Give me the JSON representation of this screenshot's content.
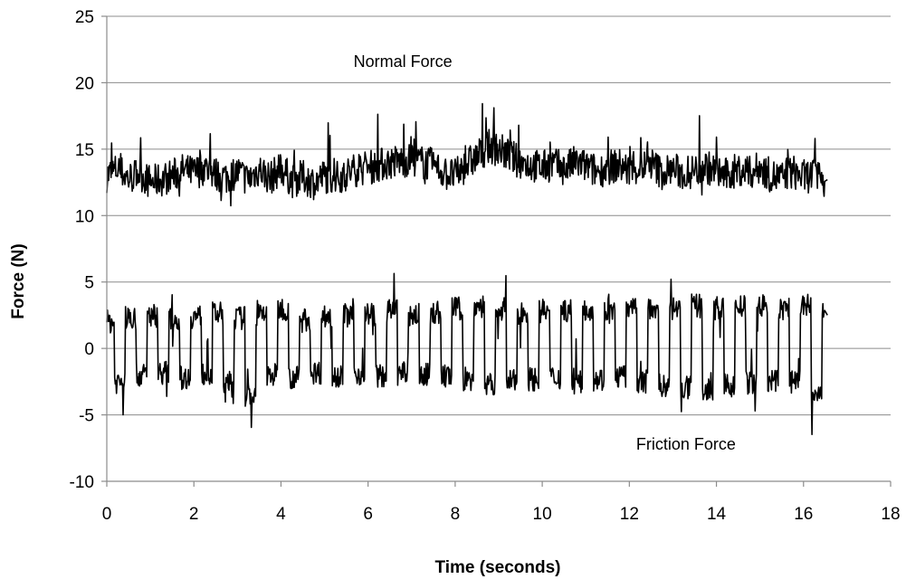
{
  "chart_data": {
    "type": "line",
    "title": "",
    "xlabel": "Time (seconds)",
    "ylabel": "Force (N)",
    "xlim": [
      0,
      18
    ],
    "ylim": [
      -10,
      25
    ],
    "x_ticks": [
      0,
      2,
      4,
      6,
      8,
      10,
      12,
      14,
      16,
      18
    ],
    "y_ticks": [
      -10,
      -5,
      0,
      5,
      10,
      15,
      20,
      25
    ],
    "grid": "horizontal",
    "legend": "none",
    "annotations": [
      {
        "text": "Normal Force",
        "x": 6.8,
        "y": 21.2
      },
      {
        "text": "Friction  Force",
        "x": 13.3,
        "y": -7.6
      }
    ],
    "series": [
      {
        "color": "#000000",
        "x_start": 0,
        "x_end": 16.55,
        "x": [
          0,
          0.25,
          0.5,
          0.75,
          1,
          1.25,
          1.5,
          1.75,
          2,
          2.25,
          2.5,
          2.75,
          3,
          3.25,
          3.5,
          3.75,
          4,
          4.25,
          4.5,
          4.75,
          5,
          5.25,
          5.5,
          5.75,
          6,
          6.25,
          6.5,
          6.75,
          7,
          7.25,
          7.5,
          7.75,
          8,
          8.25,
          8.5,
          8.75,
          9,
          9.25,
          9.5,
          9.75,
          10,
          10.25,
          10.5,
          10.75,
          11,
          11.25,
          11.5,
          11.75,
          12,
          12.25,
          12.5,
          12.75,
          13,
          13.25,
          13.5,
          13.75,
          14,
          14.25,
          14.5,
          14.75,
          15,
          15.25,
          15.5,
          15.75,
          16,
          16.25,
          16.5
        ],
        "y": [
          13,
          13.5,
          12.8,
          13.2,
          12.5,
          12.7,
          13,
          13.4,
          13.2,
          13.6,
          13.1,
          12.9,
          13.3,
          12.7,
          13.5,
          12.8,
          13.6,
          12.6,
          12.9,
          12.5,
          13,
          12.8,
          13.1,
          13.5,
          13.6,
          13.8,
          14,
          14.1,
          14.2,
          14,
          13.8,
          13.2,
          13,
          13.8,
          14.4,
          15.2,
          15,
          14.5,
          14,
          13.8,
          13.6,
          13.9,
          13.5,
          14,
          13.7,
          13.3,
          13.6,
          13.8,
          13.4,
          13.6,
          13.9,
          13.2,
          13.5,
          13.1,
          13.4,
          13.7,
          13.3,
          13,
          13.5,
          13.2,
          13.6,
          13,
          12.8,
          13.3,
          12.9,
          13.1,
          12.7
        ]
      },
      {
        "color": "#000000",
        "x_start": 0,
        "x_end": 16.55,
        "x": [
          0,
          0.25,
          0.5,
          0.75,
          1,
          1.25,
          1.5,
          1.75,
          2,
          2.25,
          2.5,
          2.75,
          3,
          3.25,
          3.5,
          3.75,
          4,
          4.25,
          4.5,
          4.75,
          5,
          5.25,
          5.5,
          5.75,
          6,
          6.25,
          6.5,
          6.75,
          7,
          7.25,
          7.5,
          7.75,
          8,
          8.25,
          8.5,
          8.75,
          9,
          9.25,
          9.5,
          9.75,
          10,
          10.25,
          10.5,
          10.75,
          11,
          11.25,
          11.5,
          11.75,
          12,
          12.25,
          12.5,
          12.75,
          13,
          13.25,
          13.5,
          13.75,
          14,
          14.25,
          14.5,
          14.75,
          15,
          15.25,
          15.5,
          15.75,
          16,
          16.25,
          16.5
        ],
        "y": [
          2,
          -2.5,
          2.3,
          -2,
          2.5,
          -1.8,
          2.2,
          -2.2,
          2.4,
          -1.9,
          2.6,
          -2.8,
          2.3,
          -3.5,
          2.5,
          -2,
          3,
          -2.2,
          2.2,
          -1.8,
          2.4,
          -2,
          2.5,
          -1.9,
          2.6,
          -2.1,
          2.8,
          -1.9,
          2.5,
          -2,
          2.7,
          -2.1,
          3,
          -2.4,
          3.2,
          -2.8,
          3,
          -2.5,
          2.7,
          -2.3,
          2.8,
          -2.2,
          2.9,
          -2.6,
          3,
          -2.3,
          2.7,
          -2.1,
          2.9,
          -2.5,
          3.1,
          -2.8,
          3,
          -3,
          3.2,
          -3.2,
          3,
          -2.8,
          3.1,
          -2.6,
          3.2,
          -2.5,
          3,
          -2.3,
          3.2,
          -3.5,
          2.5
        ]
      }
    ]
  }
}
